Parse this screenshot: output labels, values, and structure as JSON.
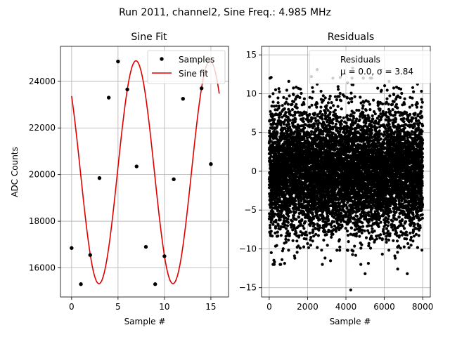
{
  "suptitle": "Run 2011, channel2, Sine Freq.: 4.985 MHz",
  "colors": {
    "fit_line": "#e00000",
    "markers": "#000000",
    "grid": "#b0b0b0"
  },
  "chart_data": [
    {
      "type": "line",
      "title": "Sine Fit",
      "xlabel": "Sample #",
      "ylabel": "ADC Counts",
      "xlim": [
        -1.2,
        16.9
      ],
      "ylim": [
        14750,
        25500
      ],
      "xticks": [
        0,
        5,
        10,
        15
      ],
      "yticks": [
        16000,
        18000,
        20000,
        22000,
        24000
      ],
      "grid": true,
      "legend": {
        "placement": "top-right",
        "entries": [
          "Samples",
          "Sine fit"
        ]
      },
      "series": [
        {
          "name": "Samples",
          "style": "markers",
          "x": [
            0,
            1,
            2,
            3,
            4,
            5,
            6,
            7,
            8,
            9,
            10,
            11,
            12,
            13,
            14,
            15
          ],
          "y": [
            16850,
            15300,
            16550,
            19850,
            23300,
            24850,
            23650,
            20350,
            16900,
            15300,
            16500,
            19800,
            23250,
            24850,
            23700,
            20450
          ]
        },
        {
          "name": "Sine fit",
          "style": "line",
          "function": {
            "offset": 20100,
            "amplitude": 4780,
            "period": 7.97,
            "phase": 2.39
          },
          "x_range": [
            0,
            15.9
          ]
        }
      ]
    },
    {
      "type": "scatter",
      "title": "Residuals",
      "xlabel": "Sample #",
      "ylabel": "",
      "xlim": [
        -400,
        8400
      ],
      "ylim": [
        -16.2,
        16.1
      ],
      "xticks": [
        0,
        2000,
        4000,
        6000,
        8000
      ],
      "yticks": [
        -15,
        -10,
        -5,
        0,
        5,
        10,
        15
      ],
      "grid": true,
      "legend": {
        "placement": "top-right",
        "entries": [
          "Residuals",
          "μ = 0.0, σ = 3.84"
        ]
      },
      "series": [
        {
          "name": "Residuals",
          "n_points": 8000,
          "mean": 0.0,
          "sigma": 3.84,
          "x_range": [
            0,
            8000
          ],
          "outliers": [
            {
              "x": 4250,
              "y": -15.3
            },
            {
              "x": 2500,
              "y": 13.1
            },
            {
              "x": 4350,
              "y": 13.3
            },
            {
              "x": 100,
              "y": 12.1
            },
            {
              "x": 3700,
              "y": 12.1
            },
            {
              "x": 7200,
              "y": -13.2
            },
            {
              "x": 5000,
              "y": -13.2
            },
            {
              "x": 4900,
              "y": 12.0
            },
            {
              "x": 2200,
              "y": 12.2
            },
            {
              "x": 6700,
              "y": -12.6
            }
          ]
        }
      ]
    }
  ]
}
